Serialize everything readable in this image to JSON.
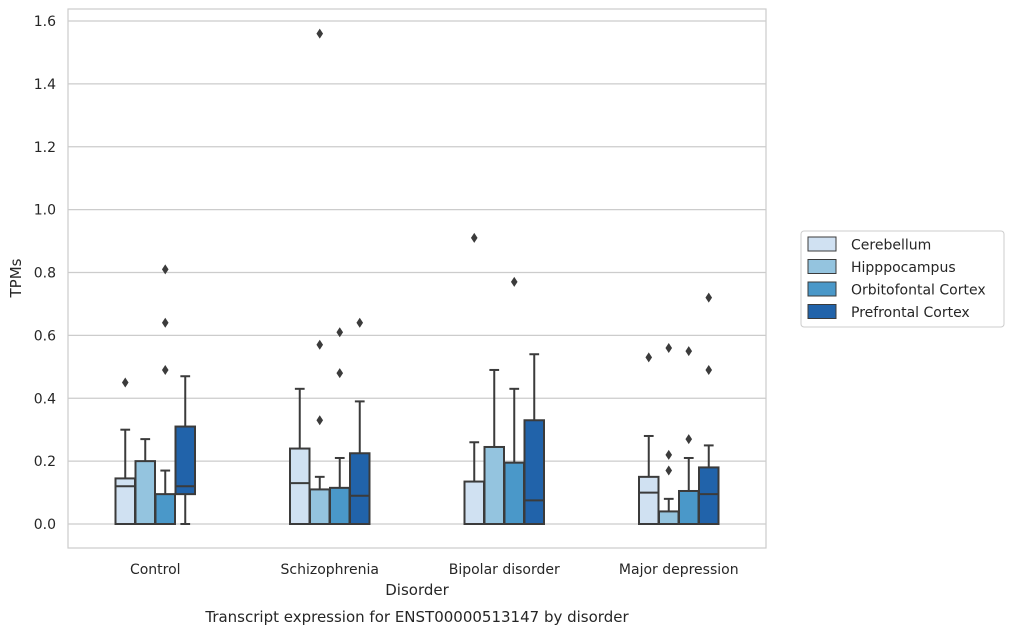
{
  "chart_data": {
    "type": "box",
    "title": "Transcript expression for ENST00000513147 by disorder",
    "xlabel": "Disorder",
    "ylabel": "TPMs",
    "categories": [
      "Control",
      "Schizophrenia",
      "Bipolar disorder",
      "Major depression"
    ],
    "ylim": [
      -0.075,
      1.645
    ],
    "yticks": [
      "0.0",
      "0.2",
      "0.4",
      "0.6",
      "0.8",
      "1.0",
      "1.2",
      "1.4",
      "1.6"
    ],
    "grid": true,
    "legend_position": "right",
    "series": [
      {
        "name": "Cerebellum",
        "color": "#d0e1f2",
        "boxes": [
          {
            "whisker_low": 0.0,
            "q1": 0.0,
            "median": 0.12,
            "q3": 0.145,
            "whisker_high": 0.3,
            "outliers": [
              0.45
            ]
          },
          {
            "whisker_low": 0.0,
            "q1": 0.0,
            "median": 0.13,
            "q3": 0.24,
            "whisker_high": 0.43,
            "outliers": []
          },
          {
            "whisker_low": 0.0,
            "q1": 0.0,
            "median": 0.0,
            "q3": 0.135,
            "whisker_high": 0.26,
            "outliers": [
              0.91
            ]
          },
          {
            "whisker_low": 0.0,
            "q1": 0.0,
            "median": 0.1,
            "q3": 0.15,
            "whisker_high": 0.28,
            "outliers": [
              0.53
            ]
          }
        ]
      },
      {
        "name": "Hipppocampus",
        "color": "#94c4df",
        "boxes": [
          {
            "whisker_low": 0.0,
            "q1": 0.0,
            "median": 0.0,
            "q3": 0.2,
            "whisker_high": 0.27,
            "outliers": []
          },
          {
            "whisker_low": 0.0,
            "q1": 0.0,
            "median": 0.0,
            "q3": 0.11,
            "whisker_high": 0.15,
            "outliers": [
              0.33,
              0.57,
              1.56
            ]
          },
          {
            "whisker_low": 0.0,
            "q1": 0.0,
            "median": 0.0,
            "q3": 0.245,
            "whisker_high": 0.49,
            "outliers": []
          },
          {
            "whisker_low": 0.0,
            "q1": 0.0,
            "median": 0.0,
            "q3": 0.04,
            "whisker_high": 0.08,
            "outliers": [
              0.17,
              0.22,
              0.56
            ]
          }
        ]
      },
      {
        "name": "Orbitofontal Cortex",
        "color": "#4a98c9",
        "boxes": [
          {
            "whisker_low": 0.0,
            "q1": 0.0,
            "median": 0.0,
            "q3": 0.095,
            "whisker_high": 0.17,
            "outliers": [
              0.49,
              0.64,
              0.81
            ]
          },
          {
            "whisker_low": 0.0,
            "q1": 0.0,
            "median": 0.0,
            "q3": 0.115,
            "whisker_high": 0.21,
            "outliers": [
              0.48,
              0.61
            ]
          },
          {
            "whisker_low": 0.0,
            "q1": 0.0,
            "median": 0.0,
            "q3": 0.195,
            "whisker_high": 0.43,
            "outliers": [
              0.77
            ]
          },
          {
            "whisker_low": 0.0,
            "q1": 0.0,
            "median": 0.0,
            "q3": 0.105,
            "whisker_high": 0.21,
            "outliers": [
              0.27,
              0.55
            ]
          }
        ]
      },
      {
        "name": "Prefrontal Cortex",
        "color": "#2163aa",
        "boxes": [
          {
            "whisker_low": 0.0,
            "q1": 0.095,
            "median": 0.12,
            "q3": 0.31,
            "whisker_high": 0.47,
            "outliers": []
          },
          {
            "whisker_low": 0.0,
            "q1": 0.0,
            "median": 0.09,
            "q3": 0.225,
            "whisker_high": 0.39,
            "outliers": [
              0.64
            ]
          },
          {
            "whisker_low": 0.0,
            "q1": 0.0,
            "median": 0.075,
            "q3": 0.33,
            "whisker_high": 0.54,
            "outliers": []
          },
          {
            "whisker_low": 0.0,
            "q1": 0.0,
            "median": 0.095,
            "q3": 0.18,
            "whisker_high": 0.25,
            "outliers": [
              0.49,
              0.72
            ]
          }
        ]
      }
    ]
  }
}
